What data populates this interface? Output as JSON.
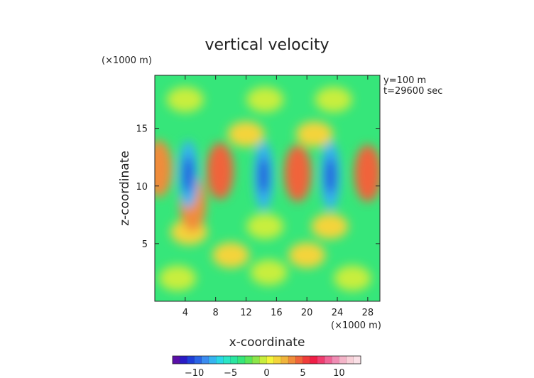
{
  "chart_data": {
    "type": "heatmap",
    "title": "vertical velocity",
    "xlabel": "x-coordinate",
    "ylabel": "z-coordinate",
    "x_unit": "(×1000 m)",
    "y_unit": "(×1000 m)",
    "annotations": [
      "y=100 m",
      "t=29600 sec"
    ],
    "xlim": [
      0,
      29.6
    ],
    "ylim": [
      0,
      19.6
    ],
    "x_ticks": [
      4,
      8,
      12,
      16,
      20,
      24,
      28
    ],
    "y_ticks": [
      5,
      10,
      15
    ],
    "x_tick_labels": [
      "4",
      "8",
      "12",
      "16",
      "20",
      "24",
      "28"
    ],
    "y_tick_labels": [
      "5",
      "10",
      "15"
    ],
    "colorbar": {
      "min": -13,
      "max": 13,
      "step": 1,
      "ticks": [
        -10,
        -5,
        0,
        5,
        10
      ],
      "tick_labels": [
        "−10",
        "−5",
        "0",
        "5",
        "10"
      ],
      "colors": [
        "#5a0fa8",
        "#2a1bc6",
        "#1f3fd8",
        "#2a64e6",
        "#3b8cf0",
        "#36b4f0",
        "#2ad6e6",
        "#2ae6c6",
        "#2ae6a0",
        "#36e67a",
        "#5ae65a",
        "#8ce64a",
        "#c8ee3c",
        "#f4f43a",
        "#f4d43a",
        "#f0b43c",
        "#f08c3a",
        "#f0643a",
        "#f03c3a",
        "#f01e46",
        "#f03c6e",
        "#f06496",
        "#f08cb4",
        "#f4b4c8",
        "#f8d0d8",
        "#fae0e6"
      ]
    },
    "field_features": [
      {
        "x": 4.4,
        "z": 11.0,
        "value": -8
      },
      {
        "x": 14.3,
        "z": 10.9,
        "value": -8
      },
      {
        "x": 23.1,
        "z": 10.9,
        "value": -8
      },
      {
        "x": 8.6,
        "z": 11.3,
        "value": 4
      },
      {
        "x": 18.8,
        "z": 11.1,
        "value": 4
      },
      {
        "x": 28.0,
        "z": 11.1,
        "value": 4
      },
      {
        "x": 0.5,
        "z": 11.5,
        "value": 3
      },
      {
        "x": 5.0,
        "z": 8.5,
        "value": 3
      },
      {
        "x": 4.0,
        "z": 17.5,
        "value": -1
      },
      {
        "x": 14.5,
        "z": 17.5,
        "value": -1
      },
      {
        "x": 23.5,
        "z": 17.5,
        "value": -1
      },
      {
        "x": 12.0,
        "z": 14.5,
        "value": 1
      },
      {
        "x": 21.0,
        "z": 14.5,
        "value": 1
      },
      {
        "x": 14.5,
        "z": 6.5,
        "value": -1
      },
      {
        "x": 4.5,
        "z": 6.0,
        "value": 1
      },
      {
        "x": 23.0,
        "z": 6.5,
        "value": 1
      },
      {
        "x": 10.0,
        "z": 4.0,
        "value": 1
      },
      {
        "x": 20.0,
        "z": 4.0,
        "value": 1
      },
      {
        "x": 3.0,
        "z": 2.0,
        "value": -1
      },
      {
        "x": 15.0,
        "z": 2.5,
        "value": -1
      },
      {
        "x": 26.0,
        "z": 2.0,
        "value": -1
      }
    ]
  }
}
